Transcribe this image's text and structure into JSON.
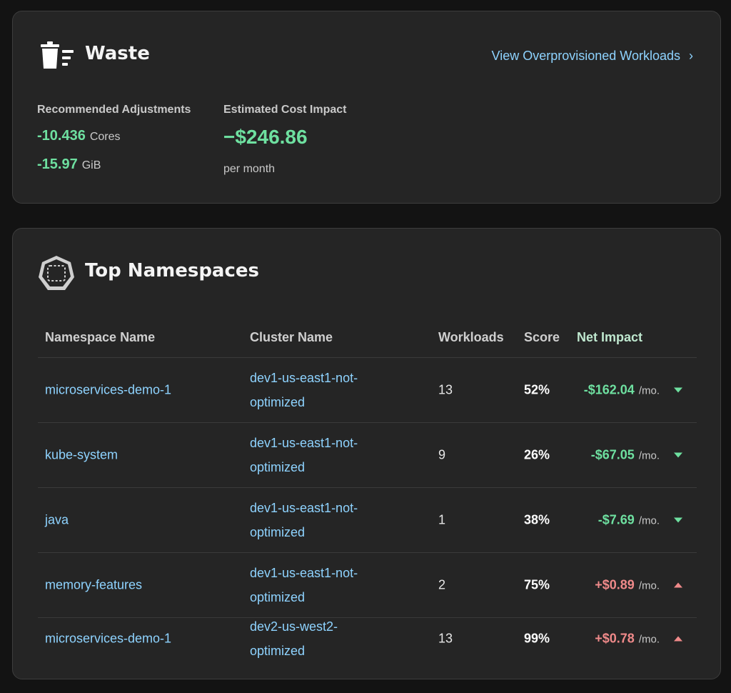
{
  "waste": {
    "title": "Waste",
    "link_label": "View Overprovisioned Workloads",
    "adjustments_label": "Recommended Adjustments",
    "cores_value": "-10.436",
    "cores_unit": "Cores",
    "memory_value": "-15.97",
    "memory_unit": "GiB",
    "cost_label": "Estimated Cost Impact",
    "cost_value": "−$246.86",
    "cost_period": "per month",
    "icon": "trash-icon"
  },
  "namespaces": {
    "title": "Top Namespaces",
    "icon": "kubernetes-namespace-icon",
    "headers": {
      "namespace": "Namespace Name",
      "cluster": "Cluster Name",
      "workloads": "Workloads",
      "score": "Score",
      "net": "Net Impact"
    },
    "rows": [
      {
        "namespace": "microservices-demo-1",
        "cluster": "dev1-us-east1-not-optimized",
        "workloads": "13",
        "score": "52%",
        "net": "-$162.04",
        "unit": "/mo.",
        "trend": "down"
      },
      {
        "namespace": "kube-system",
        "cluster": "dev1-us-east1-not-optimized",
        "workloads": "9",
        "score": "26%",
        "net": "-$67.05",
        "unit": "/mo.",
        "trend": "down"
      },
      {
        "namespace": "java",
        "cluster": "dev1-us-east1-not-optimized",
        "workloads": "1",
        "score": "38%",
        "net": "-$7.69",
        "unit": "/mo.",
        "trend": "down"
      },
      {
        "namespace": "memory-features",
        "cluster": "dev1-us-east1-not-optimized",
        "workloads": "2",
        "score": "75%",
        "net": "+$0.89",
        "unit": "/mo.",
        "trend": "up"
      },
      {
        "namespace": "microservices-demo-1",
        "cluster": "dev2-us-west2-optimized",
        "workloads": "13",
        "score": "99%",
        "net": "+$0.78",
        "unit": "/mo.",
        "trend": "up"
      }
    ]
  },
  "colors": {
    "positive_savings": "#6ee0a0",
    "cost_increase": "#f08a8a",
    "link": "#8ed3ff",
    "card_bg": "#252525",
    "page_bg": "#131313"
  }
}
